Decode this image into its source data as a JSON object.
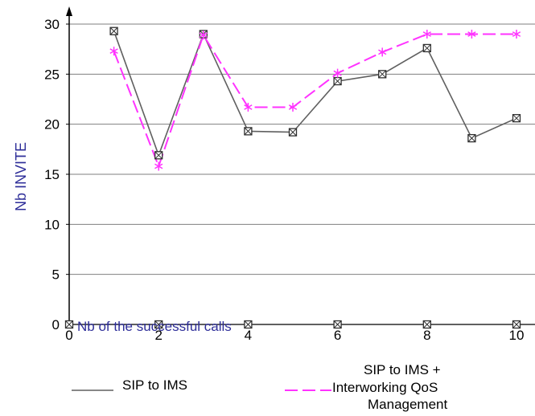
{
  "chart_data": {
    "type": "line",
    "title": "",
    "xlabel": "Nb of the successful calls",
    "ylabel": "Nb INVITE",
    "xlim": [
      0,
      10
    ],
    "ylim": [
      0,
      30
    ],
    "x_ticks": [
      0,
      2,
      4,
      6,
      8,
      10
    ],
    "y_ticks": [
      0,
      5,
      10,
      15,
      20,
      25,
      30
    ],
    "grid": "horizontal",
    "legend_position": "bottom",
    "colors": {
      "axis": "#000000",
      "grid": "#7f7f7f",
      "label": "#2e2e99",
      "baseline_markers": "#303030"
    },
    "baseline_markers_x": [
      0,
      2,
      4,
      6,
      8,
      10
    ],
    "series": [
      {
        "name": "SIP to IMS",
        "color": "#606060",
        "dash": "solid",
        "marker": "square-x",
        "x": [
          1,
          2,
          3,
          4,
          5,
          6,
          7,
          8,
          9,
          10
        ],
        "y": [
          29.3,
          16.9,
          29.0,
          19.3,
          19.2,
          24.3,
          25.0,
          27.6,
          18.6,
          20.6
        ]
      },
      {
        "name": "SIP to IMS + Interworking QoS Management",
        "color": "#ff33ff",
        "dash": "dashed",
        "marker": "star",
        "x": [
          1,
          2,
          3,
          4,
          5,
          6,
          7,
          8,
          9,
          10
        ],
        "y": [
          27.3,
          15.8,
          28.9,
          21.7,
          21.7,
          25.1,
          27.2,
          29.0,
          29.0,
          29.0
        ]
      }
    ],
    "legend": [
      {
        "label": "SIP to IMS"
      },
      {
        "label_lines": [
          "SIP to IMS +",
          "Interworking QoS",
          "Management"
        ]
      }
    ]
  }
}
